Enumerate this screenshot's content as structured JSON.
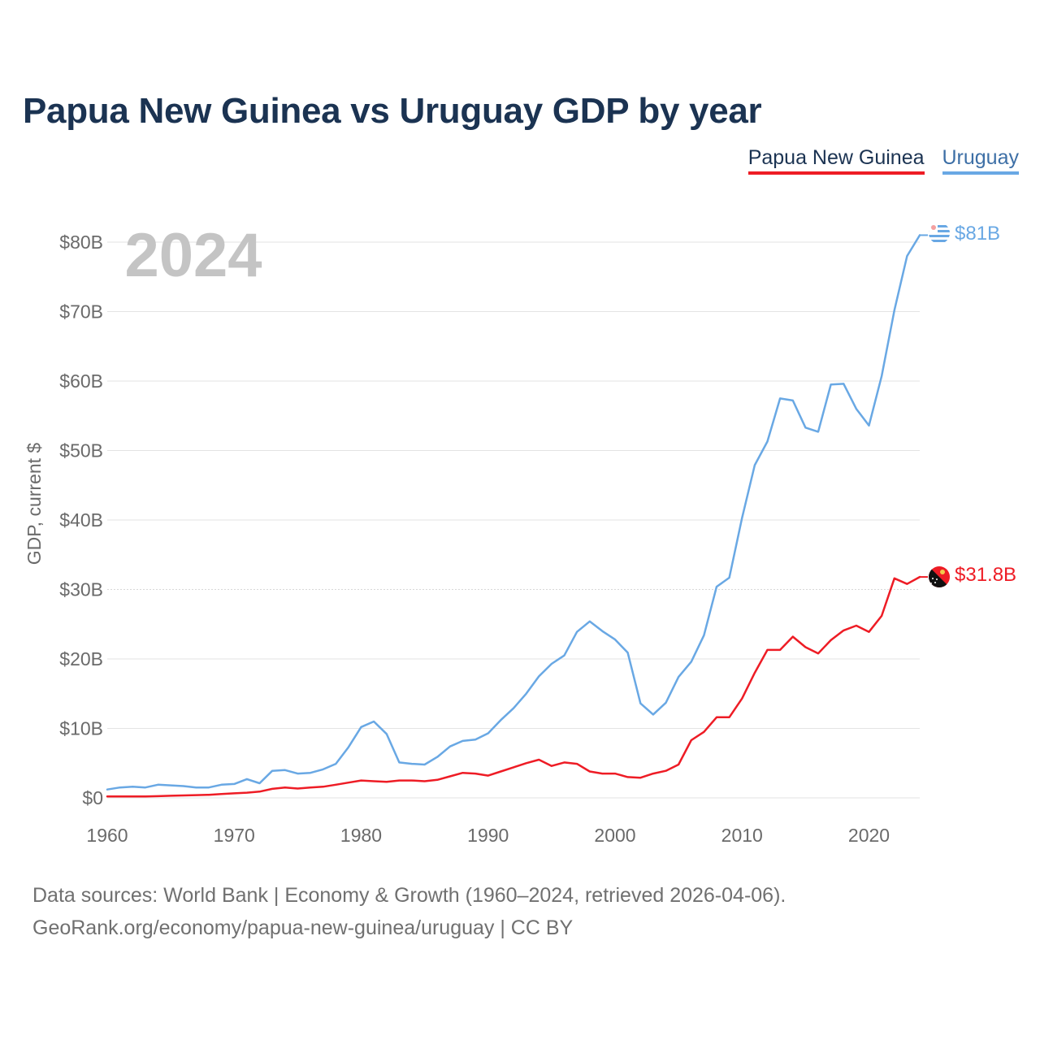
{
  "title": "Papua New Guinea vs Uruguay GDP by year",
  "legend": {
    "png": "Papua New Guinea",
    "uy": "Uruguay"
  },
  "footer": {
    "line1": "Data sources: World Bank | Economy & Growth (1960–2024, retrieved 2026-04-06).",
    "line2": "GeoRank.org/economy/papua-new-guinea/uruguay | CC BY"
  },
  "colors": {
    "png": "#ee1c25",
    "uy": "#69a8e4",
    "grid": "#e3e3e3",
    "axis": "#6a6a6a",
    "year": "#c4c4c4",
    "title": "#1b3352"
  },
  "chart_data": {
    "type": "line",
    "title": "Papua New Guinea vs Uruguay GDP by year",
    "year_label": "2024",
    "ylabel": "GDP, current $",
    "xlabel": "",
    "xlim": [
      1960,
      2024
    ],
    "ylim": [
      0,
      80
    ],
    "x_ticks": [
      1960,
      1970,
      1980,
      1990,
      2000,
      2010,
      2020
    ],
    "y_ticks": [
      {
        "value": 0,
        "label": "$0"
      },
      {
        "value": 10,
        "label": "$10B"
      },
      {
        "value": 20,
        "label": "$20B"
      },
      {
        "value": 30,
        "label": "$30B"
      },
      {
        "value": 40,
        "label": "$40B"
      },
      {
        "value": 50,
        "label": "$50B"
      },
      {
        "value": 60,
        "label": "$60B"
      },
      {
        "value": 70,
        "label": "$70B"
      },
      {
        "value": 80,
        "label": "$80B"
      }
    ],
    "x": [
      1960,
      1961,
      1962,
      1963,
      1964,
      1965,
      1966,
      1967,
      1968,
      1969,
      1970,
      1971,
      1972,
      1973,
      1974,
      1975,
      1976,
      1977,
      1978,
      1979,
      1980,
      1981,
      1982,
      1983,
      1984,
      1985,
      1986,
      1987,
      1988,
      1989,
      1990,
      1991,
      1992,
      1993,
      1994,
      1995,
      1996,
      1997,
      1998,
      1999,
      2000,
      2001,
      2002,
      2003,
      2004,
      2005,
      2006,
      2007,
      2008,
      2009,
      2010,
      2011,
      2012,
      2013,
      2014,
      2015,
      2016,
      2017,
      2018,
      2019,
      2020,
      2021,
      2022,
      2023,
      2024
    ],
    "series": [
      {
        "name": "Uruguay",
        "color": "#69a8e4",
        "end_label": "$81B",
        "values": [
          1.2,
          1.5,
          1.6,
          1.5,
          1.9,
          1.8,
          1.7,
          1.5,
          1.5,
          1.9,
          2.0,
          2.7,
          2.1,
          3.9,
          4.0,
          3.5,
          3.6,
          4.1,
          4.9,
          7.3,
          10.2,
          11.0,
          9.2,
          5.1,
          4.9,
          4.8,
          5.9,
          7.4,
          8.2,
          8.4,
          9.3,
          11.2,
          12.9,
          15.0,
          17.5,
          19.3,
          20.5,
          23.9,
          25.4,
          24.0,
          22.8,
          20.9,
          13.6,
          12.0,
          13.7,
          17.4,
          19.6,
          23.4,
          30.4,
          31.7,
          40.3,
          47.9,
          51.3,
          57.5,
          57.2,
          53.3,
          52.7,
          59.5,
          59.6,
          56.0,
          53.6,
          60.7,
          70.2,
          78.0,
          81.0
        ]
      },
      {
        "name": "Papua New Guinea",
        "color": "#ee1c25",
        "end_label": "$31.8B",
        "values": [
          0.2,
          0.2,
          0.2,
          0.2,
          0.25,
          0.3,
          0.35,
          0.4,
          0.45,
          0.55,
          0.65,
          0.75,
          0.9,
          1.3,
          1.5,
          1.35,
          1.5,
          1.6,
          1.9,
          2.2,
          2.5,
          2.4,
          2.3,
          2.5,
          2.5,
          2.4,
          2.6,
          3.1,
          3.6,
          3.5,
          3.2,
          3.8,
          4.4,
          5.0,
          5.5,
          4.6,
          5.1,
          4.9,
          3.8,
          3.5,
          3.5,
          3.0,
          2.9,
          3.5,
          3.9,
          4.8,
          8.3,
          9.5,
          11.6,
          11.6,
          14.3,
          18.0,
          21.3,
          21.3,
          23.2,
          21.7,
          20.8,
          22.7,
          24.1,
          24.8,
          23.9,
          26.2,
          31.6,
          30.8,
          31.8
        ]
      }
    ]
  }
}
